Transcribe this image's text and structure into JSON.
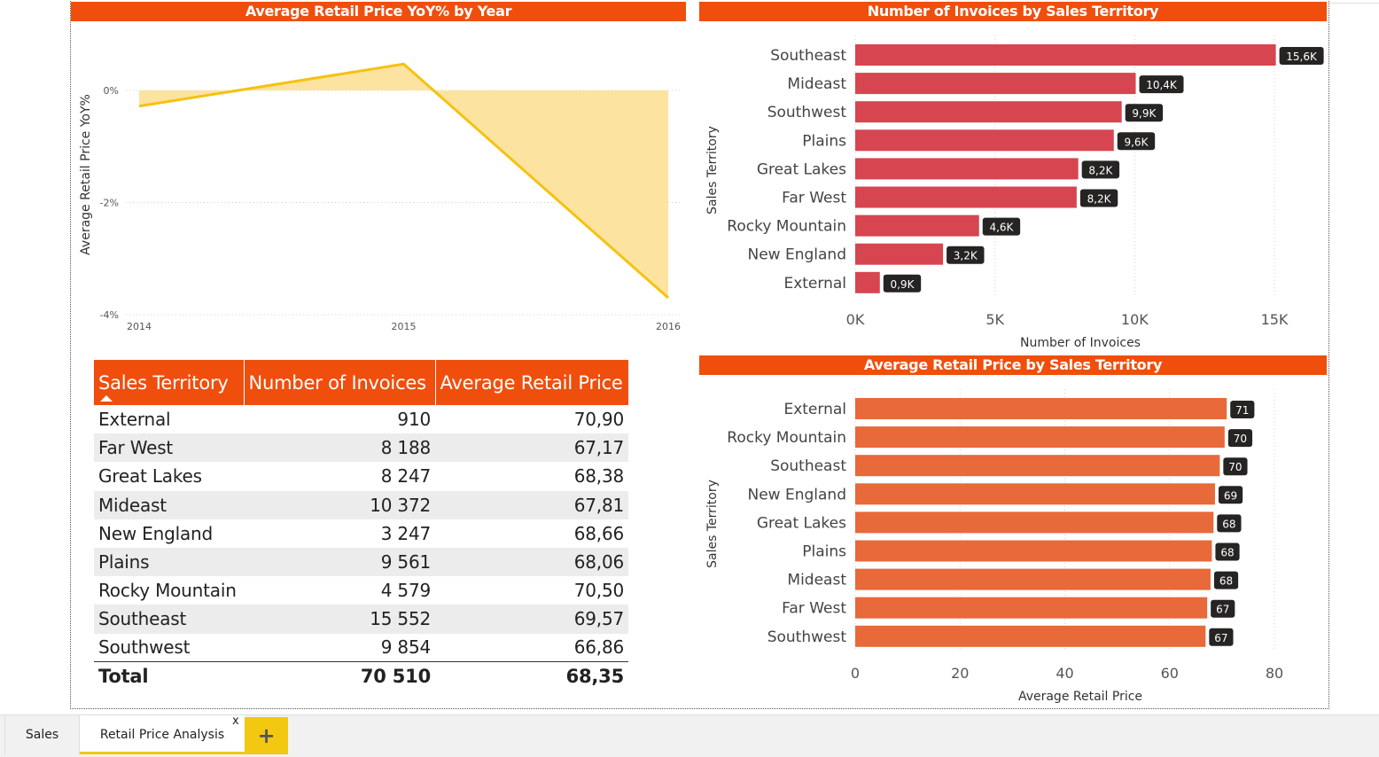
{
  "yoy_panel": {
    "title": "Average Retail Price YoY% by Year",
    "ylabel": "Average Retail Price YoY%"
  },
  "invoices_panel": {
    "title": "Number of Invoices by Sales Territory",
    "ylabel": "Sales Territory",
    "xlabel": "Number of Invoices"
  },
  "price_panel": {
    "title": "Average Retail Price by Sales Territory",
    "ylabel": "Sales Territory",
    "xlabel": "Average Retail Price"
  },
  "colors": {
    "header_orange": "#f04e0d",
    "line_yellow": "#f5c211",
    "area_yellow": "#fde3a0",
    "bar_red": "#d64550",
    "bar_orange": "#e8693a",
    "label_dark": "#252423",
    "tab_accent": "#f2c811"
  },
  "chart_data": [
    {
      "type": "area",
      "x": [
        "2014",
        "2015",
        "2016"
      ],
      "values": [
        -0.28,
        0.47,
        -3.7
      ],
      "yticks": [
        "0%",
        "-2%",
        "-4%"
      ],
      "ylim": [
        -4,
        0.7
      ],
      "title": "Average Retail Price YoY% by Year",
      "ylabel": "Average Retail Price YoY%",
      "xlabel": "",
      "grid": true
    },
    {
      "type": "bar",
      "orientation": "horizontal",
      "categories": [
        "Southeast",
        "Mideast",
        "Southwest",
        "Plains",
        "Great Lakes",
        "Far West",
        "Rocky Mountain",
        "New England",
        "External"
      ],
      "values": [
        15552,
        10372,
        9854,
        9561,
        8247,
        8188,
        4579,
        3247,
        910
      ],
      "data_labels": [
        "15,6K",
        "10,4K",
        "9,9K",
        "9,6K",
        "8,2K",
        "8,2K",
        "4,6K",
        "3,2K",
        "0,9K"
      ],
      "xticks": [
        "0K",
        "5K",
        "10K",
        "15K"
      ],
      "xlim": [
        0,
        15500
      ],
      "title": "Number of Invoices by Sales Territory",
      "xlabel": "Number of Invoices",
      "ylabel": "Sales Territory"
    },
    {
      "type": "bar",
      "orientation": "horizontal",
      "categories": [
        "External",
        "Rocky Mountain",
        "Southeast",
        "New England",
        "Great Lakes",
        "Plains",
        "Mideast",
        "Far West",
        "Southwest"
      ],
      "values": [
        70.9,
        70.5,
        69.57,
        68.66,
        68.38,
        68.06,
        67.81,
        67.17,
        66.86
      ],
      "data_labels": [
        "71",
        "70",
        "70",
        "69",
        "68",
        "68",
        "68",
        "67",
        "67"
      ],
      "xticks": [
        "0",
        "20",
        "40",
        "60",
        "80"
      ],
      "xlim": [
        0,
        80
      ],
      "title": "Average Retail Price by Sales Territory",
      "xlabel": "Average Retail Price",
      "ylabel": "Sales Territory"
    }
  ],
  "table": {
    "headers": [
      "Sales Territory",
      "Number of Invoices",
      "Average Retail Price"
    ],
    "rows": [
      [
        "External",
        "910",
        "70,90"
      ],
      [
        "Far West",
        "8 188",
        "67,17"
      ],
      [
        "Great Lakes",
        "8 247",
        "68,38"
      ],
      [
        "Mideast",
        "10 372",
        "67,81"
      ],
      [
        "New England",
        "3 247",
        "68,66"
      ],
      [
        "Plains",
        "9 561",
        "68,06"
      ],
      [
        "Rocky Mountain",
        "4 579",
        "70,50"
      ],
      [
        "Southeast",
        "15 552",
        "69,57"
      ],
      [
        "Southwest",
        "9 854",
        "66,86"
      ]
    ],
    "total": [
      "Total",
      "70 510",
      "68,35"
    ]
  },
  "tabs": {
    "sales": "Sales",
    "active": "Retail Price Analysis",
    "close": "x",
    "add": "+"
  }
}
